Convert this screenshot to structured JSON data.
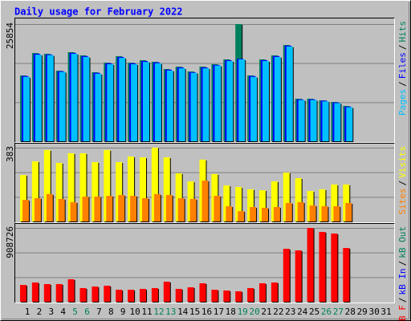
{
  "chart_data": [
    {
      "type": "bar",
      "title": "Daily usage for February 2022",
      "categories": [
        "1",
        "2",
        "3",
        "4",
        "5",
        "6",
        "7",
        "8",
        "9",
        "10",
        "11",
        "12",
        "13",
        "14",
        "15",
        "16",
        "17",
        "18",
        "19",
        "20",
        "21",
        "22",
        "23",
        "24",
        "25",
        "26",
        "27",
        "28",
        "29",
        "30",
        "31"
      ],
      "category_colors": [
        "#000000",
        "#000000",
        "#000000",
        "#000000",
        "#00805c",
        "#00805c",
        "#000000",
        "#000000",
        "#000000",
        "#000000",
        "#000000",
        "#00805c",
        "#00805c",
        "#000000",
        "#000000",
        "#000000",
        "#000000",
        "#000000",
        "#00805c",
        "#00805c",
        "#000000",
        "#000000",
        "#000000",
        "#000000",
        "#000000",
        "#00805c",
        "#00805c",
        "#000000",
        "#000000",
        "#000000",
        "#000000"
      ],
      "legend_separator": "/",
      "ylim": [
        0,
        25854
      ],
      "yticks": [
        25854
      ],
      "series": [
        {
          "name": "Pages",
          "color": "#00c0ff",
          "values": [
            14200,
            19100,
            19000,
            15300,
            19300,
            18600,
            14900,
            17000,
            18400,
            17000,
            17500,
            17200,
            15600,
            16100,
            15100,
            16100,
            16700,
            17700,
            18062,
            14200,
            17700,
            18600,
            20900,
            9100,
            9100,
            8800,
            8400,
            7500,
            null,
            null,
            null
          ]
        },
        {
          "name": "Files",
          "color": "#0000ff",
          "values": [
            14400,
            19300,
            19150,
            15450,
            19500,
            18800,
            15100,
            17200,
            18600,
            17200,
            17700,
            17400,
            15800,
            16300,
            15250,
            16300,
            16850,
            17900,
            18200,
            14400,
            17900,
            18800,
            21100,
            9250,
            9250,
            8950,
            8550,
            7650,
            null,
            null,
            null
          ]
        },
        {
          "name": "Hits",
          "color": "#00805c",
          "values": [
            14521,
            19479,
            19302,
            15583,
            19656,
            18948,
            15229,
            17354,
            18771,
            17354,
            17885,
            17531,
            15937,
            16468,
            15406,
            16468,
            17000,
            18062,
            25854,
            14521,
            18062,
            18948,
            21250,
            9385,
            9385,
            9031,
            8677,
            7792,
            null,
            null,
            null
          ]
        }
      ]
    },
    {
      "type": "bar",
      "ylim": [
        0,
        383
      ],
      "yticks": [
        383
      ],
      "series": [
        {
          "name": "Sites",
          "color": "#ff8000",
          "values": [
            112,
            121,
            142,
            117,
            100,
            129,
            129,
            133,
            137,
            133,
            121,
            142,
            137,
            121,
            117,
            212,
            133,
            79,
            54,
            75,
            71,
            75,
            96,
            100,
            83,
            79,
            79,
            96,
            null,
            null,
            null
          ]
        },
        {
          "name": "Visits",
          "color": "#ffff00",
          "values": [
            241,
            312,
            371,
            304,
            354,
            354,
            308,
            371,
            308,
            337,
            333,
            383,
            333,
            250,
            208,
            321,
            246,
            187,
            179,
            167,
            162,
            208,
            254,
            225,
            158,
            167,
            192,
            192,
            null,
            null,
            null
          ]
        }
      ]
    },
    {
      "type": "bar",
      "ylim": [
        0,
        908726
      ],
      "yticks": [
        908726
      ],
      "series": [
        {
          "name": "kB F",
          "color": "#ff0000",
          "values": [
            207417,
            237048,
            217294,
            217294,
            276556,
            167909,
            187663,
            197540,
            148155,
            148155,
            158032,
            167909,
            246925,
            158032,
            177786,
            227171,
            148155,
            138278,
            128401,
            167909,
            227171,
            237048,
            651882,
            632128,
            908726,
            859299,
            839545,
            661759,
            null,
            null,
            null
          ]
        },
        {
          "name": "kB In",
          "color": "#0000ff",
          "values": [
            null,
            null,
            null,
            null,
            null,
            null,
            null,
            null,
            null,
            null,
            null,
            null,
            null,
            null,
            null,
            null,
            null,
            null,
            null,
            null,
            null,
            null,
            null,
            null,
            null,
            null,
            null,
            null,
            null,
            null,
            null
          ]
        },
        {
          "name": "kB Out",
          "color": "#00805c",
          "values": [
            null,
            null,
            null,
            null,
            null,
            null,
            null,
            null,
            null,
            null,
            null,
            null,
            null,
            null,
            null,
            null,
            null,
            null,
            null,
            null,
            null,
            null,
            null,
            null,
            null,
            null,
            null,
            null,
            null,
            null,
            null
          ]
        }
      ]
    }
  ]
}
